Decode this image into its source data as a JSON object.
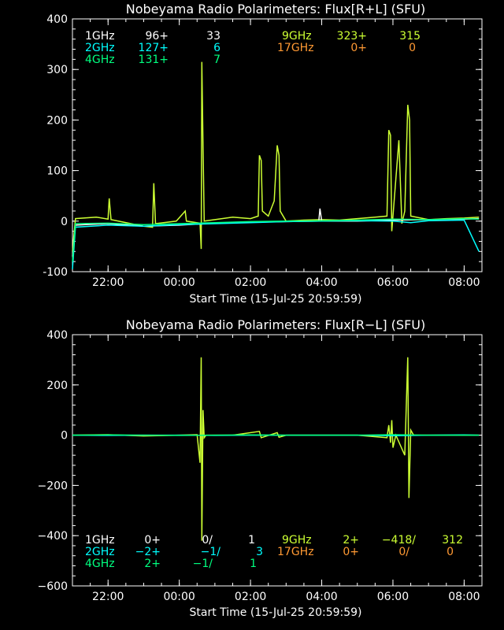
{
  "colors": {
    "background": "#000000",
    "axis": "#ffffff",
    "1GHz": "#ffffff",
    "2GHz": "#00ffff",
    "4GHz": "#00ff80",
    "9GHz": "#ccff33",
    "17GHz": "#ff9933"
  },
  "chart_data": [
    {
      "type": "line",
      "title": "Nobeyama Radio Polarimeters: Flux[R+L] (SFU)",
      "xlabel": "Start Time (15-Jul-25 20:59:59)",
      "ylabel": "",
      "x_ticks": [
        "22:00",
        "00:00",
        "02:00",
        "04:00",
        "06:00",
        "08:00"
      ],
      "y_ticks": [
        "-100",
        "0",
        "100",
        "200",
        "300",
        "400"
      ],
      "ylim": [
        -100,
        400
      ],
      "xlim": [
        "20:59:59",
        "08:30"
      ],
      "legend": [
        {
          "name": "1GHz",
          "peak": "96+",
          "value": "33"
        },
        {
          "name": "2GHz",
          "peak": "127+",
          "value": "6"
        },
        {
          "name": "4GHz",
          "peak": "131+",
          "value": "7"
        },
        {
          "name": "9GHz",
          "peak": "323+",
          "value": "315"
        },
        {
          "name": "17GHz",
          "peak": "0+",
          "value": "0"
        }
      ],
      "series": [
        {
          "name": "9GHz",
          "color_key": "9GHz",
          "points": [
            [
              "21:00",
              -60
            ],
            [
              "21:05",
              5
            ],
            [
              "21:40",
              8
            ],
            [
              "22:00",
              4
            ],
            [
              "22:02",
              45
            ],
            [
              "22:05",
              3
            ],
            [
              "23:00",
              -10
            ],
            [
              "23:15",
              -12
            ],
            [
              "23:17",
              75
            ],
            [
              "23:20",
              -5
            ],
            [
              "23:55",
              0
            ],
            [
              "00:10",
              20
            ],
            [
              "00:12",
              0
            ],
            [
              "00:35",
              -4
            ],
            [
              "00:37",
              -55
            ],
            [
              "00:38",
              315
            ],
            [
              "00:40",
              150
            ],
            [
              "00:42",
              0
            ],
            [
              "01:00",
              3
            ],
            [
              "01:30",
              8
            ],
            [
              "02:00",
              5
            ],
            [
              "02:13",
              10
            ],
            [
              "02:15",
              130
            ],
            [
              "02:18",
              120
            ],
            [
              "02:20",
              20
            ],
            [
              "02:30",
              10
            ],
            [
              "02:40",
              40
            ],
            [
              "02:45",
              150
            ],
            [
              "02:48",
              130
            ],
            [
              "02:50",
              20
            ],
            [
              "03:00",
              0
            ],
            [
              "03:30",
              2
            ],
            [
              "04:00",
              3
            ],
            [
              "04:30",
              2
            ],
            [
              "05:00",
              5
            ],
            [
              "05:30",
              8
            ],
            [
              "05:50",
              10
            ],
            [
              "05:53",
              180
            ],
            [
              "05:56",
              170
            ],
            [
              "05:58",
              -20
            ],
            [
              "06:00",
              10
            ],
            [
              "06:10",
              160
            ],
            [
              "06:15",
              -5
            ],
            [
              "06:20",
              20
            ],
            [
              "06:25",
              230
            ],
            [
              "06:28",
              200
            ],
            [
              "06:30",
              10
            ],
            [
              "07:00",
              3
            ],
            [
              "07:30",
              5
            ],
            [
              "08:00",
              6
            ],
            [
              "08:25",
              8
            ]
          ]
        },
        {
          "name": "1GHz",
          "color_key": "1GHz",
          "points": [
            [
              "21:00",
              -70
            ],
            [
              "21:05",
              -8
            ],
            [
              "22:00",
              -5
            ],
            [
              "23:00",
              -10
            ],
            [
              "00:00",
              -8
            ],
            [
              "01:00",
              -4
            ],
            [
              "02:00",
              -2
            ],
            [
              "03:00",
              -1
            ],
            [
              "03:55",
              0
            ],
            [
              "03:57",
              25
            ],
            [
              "04:00",
              0
            ],
            [
              "05:00",
              0
            ],
            [
              "06:00",
              2
            ],
            [
              "07:00",
              3
            ],
            [
              "08:00",
              4
            ],
            [
              "08:25",
              5
            ]
          ]
        },
        {
          "name": "2GHz",
          "color_key": "2GHz",
          "points": [
            [
              "21:00",
              -95
            ],
            [
              "21:05",
              -12
            ],
            [
              "22:00",
              -8
            ],
            [
              "23:00",
              -10
            ],
            [
              "00:00",
              -7
            ],
            [
              "01:00",
              -5
            ],
            [
              "02:00",
              -3
            ],
            [
              "03:00",
              -1
            ],
            [
              "04:00",
              0
            ],
            [
              "05:00",
              1
            ],
            [
              "06:00",
              0
            ],
            [
              "06:30",
              -3
            ],
            [
              "07:00",
              1
            ],
            [
              "08:00",
              2
            ],
            [
              "08:25",
              -60
            ]
          ]
        },
        {
          "name": "4GHz",
          "color_key": "4GHz",
          "points": [
            [
              "21:00",
              -80
            ],
            [
              "21:05",
              -5
            ],
            [
              "22:00",
              -4
            ],
            [
              "23:00",
              -7
            ],
            [
              "00:00",
              -5
            ],
            [
              "01:00",
              -3
            ],
            [
              "02:00",
              -1
            ],
            [
              "03:00",
              0
            ],
            [
              "04:00",
              1
            ],
            [
              "05:00",
              2
            ],
            [
              "06:00",
              4
            ],
            [
              "07:00",
              3
            ],
            [
              "08:00",
              5
            ],
            [
              "08:25",
              4
            ]
          ]
        }
      ]
    },
    {
      "type": "line",
      "title": "Nobeyama Radio Polarimeters: Flux[R−L] (SFU)",
      "xlabel": "Start Time (15-Jul-25 20:59:59)",
      "ylabel": "",
      "x_ticks": [
        "22:00",
        "00:00",
        "02:00",
        "04:00",
        "06:00",
        "08:00"
      ],
      "y_ticks": [
        "−600",
        "−400",
        "−200",
        "0",
        "200",
        "400"
      ],
      "ylim": [
        -600,
        400
      ],
      "xlim": [
        "20:59:59",
        "08:30"
      ],
      "legend": [
        {
          "name": "1GHz",
          "peak": "0+",
          "mid": "0/",
          "value": "1"
        },
        {
          "name": "2GHz",
          "peak": "−2+",
          "mid": "−1/",
          "value": "3"
        },
        {
          "name": "4GHz",
          "peak": "2+",
          "mid": "−1/",
          "value": "1"
        },
        {
          "name": "9GHz",
          "peak": "2+",
          "mid": "−418/",
          "value": "312"
        },
        {
          "name": "17GHz",
          "peak": "0+",
          "mid": "0/",
          "value": "0"
        }
      ],
      "series": [
        {
          "name": "9GHz",
          "color_key": "9GHz",
          "points": [
            [
              "21:00",
              0
            ],
            [
              "22:00",
              2
            ],
            [
              "23:00",
              -3
            ],
            [
              "00:00",
              0
            ],
            [
              "00:30",
              2
            ],
            [
              "00:35",
              -110
            ],
            [
              "00:37",
              310
            ],
            [
              "00:38",
              -420
            ],
            [
              "00:40",
              100
            ],
            [
              "00:42",
              -10
            ],
            [
              "00:45",
              0
            ],
            [
              "01:30",
              0
            ],
            [
              "02:15",
              15
            ],
            [
              "02:18",
              -10
            ],
            [
              "02:45",
              10
            ],
            [
              "02:48",
              -8
            ],
            [
              "03:00",
              0
            ],
            [
              "04:00",
              0
            ],
            [
              "05:00",
              0
            ],
            [
              "05:50",
              -10
            ],
            [
              "05:53",
              40
            ],
            [
              "05:56",
              -30
            ],
            [
              "05:58",
              60
            ],
            [
              "06:00",
              -50
            ],
            [
              "06:05",
              0
            ],
            [
              "06:20",
              -80
            ],
            [
              "06:25",
              310
            ],
            [
              "06:27",
              -250
            ],
            [
              "06:30",
              20
            ],
            [
              "06:35",
              0
            ],
            [
              "07:00",
              0
            ],
            [
              "08:00",
              0
            ],
            [
              "08:25",
              0
            ]
          ]
        },
        {
          "name": "2GHz",
          "color_key": "2GHz",
          "points": [
            [
              "21:00",
              0
            ],
            [
              "22:00",
              -1
            ],
            [
              "23:00",
              0
            ],
            [
              "00:00",
              0
            ],
            [
              "01:00",
              -1
            ],
            [
              "02:00",
              0
            ],
            [
              "03:00",
              0
            ],
            [
              "04:00",
              0
            ],
            [
              "05:00",
              0
            ],
            [
              "06:00",
              -2
            ],
            [
              "07:00",
              0
            ],
            [
              "08:00",
              1
            ],
            [
              "08:25",
              0
            ]
          ]
        },
        {
          "name": "4GHz",
          "color_key": "4GHz",
          "points": [
            [
              "21:00",
              0
            ],
            [
              "22:00",
              1
            ],
            [
              "23:00",
              0
            ],
            [
              "00:00",
              -1
            ],
            [
              "01:00",
              0
            ],
            [
              "02:00",
              1
            ],
            [
              "03:00",
              0
            ],
            [
              "04:00",
              0
            ],
            [
              "05:00",
              0
            ],
            [
              "06:00",
              2
            ],
            [
              "07:00",
              0
            ],
            [
              "08:00",
              0
            ],
            [
              "08:25",
              0
            ]
          ]
        }
      ]
    }
  ]
}
